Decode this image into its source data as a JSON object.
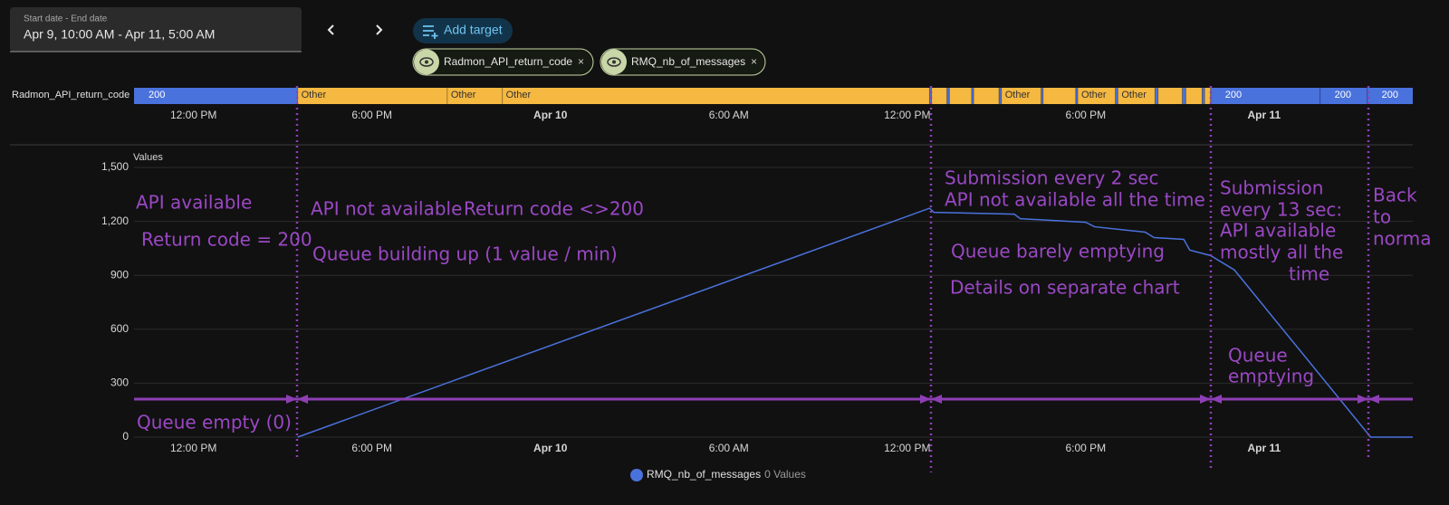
{
  "header": {
    "date_label": "Start date - End date",
    "date_range": "Apr 9, 10:00 AM - Apr 11, 5:00 AM",
    "add_target": "Add target",
    "targets": [
      "Radmon_API_return_code",
      "RMQ_nb_of_messages"
    ]
  },
  "chart_data": [
    {
      "type": "timeline",
      "name": "Radmon_API_return_code",
      "states": [
        {
          "name": "200",
          "color": "#4a72dc"
        },
        {
          "name": "Other",
          "color": "#f5b841"
        }
      ],
      "segments": [
        {
          "state": "200",
          "start": "Apr 9, 10:00 AM",
          "end": "Apr 9, 3:30 PM"
        },
        {
          "state": "Other",
          "start": "Apr 9, 3:30 PM",
          "end": "Apr 9, 8:32 PM"
        },
        {
          "state": "Other",
          "start": "Apr 9, 8:32 PM",
          "end": "Apr 9, 10:23 PM"
        },
        {
          "state": "Other",
          "start": "Apr 9, 10:23 PM",
          "end": "Apr 10, 12:45 PM"
        },
        {
          "state": "200",
          "start": "Apr 10, 12:45 PM",
          "end": "Apr 10, 12:49 PM"
        },
        {
          "state": "Other",
          "start": "Apr 10, 12:49 PM",
          "end": "Apr 10, 1:20 PM"
        },
        {
          "state": "200",
          "start": "Apr 10, 1:20 PM",
          "end": "Apr 10, 1:25 PM"
        },
        {
          "state": "Other",
          "start": "Apr 10, 1:25 PM",
          "end": "Apr 10, 2:10 PM"
        },
        {
          "state": "200",
          "start": "Apr 10, 2:10 PM",
          "end": "Apr 10, 2:14 PM"
        },
        {
          "state": "Other",
          "start": "Apr 10, 2:14 PM",
          "end": "Apr 10, 3:05 PM"
        },
        {
          "state": "200",
          "start": "Apr 10, 3:05 PM",
          "end": "Apr 10, 3:10 PM"
        },
        {
          "state": "Other",
          "start": "Apr 10, 3:10 PM",
          "end": "Apr 10, 4:30 PM"
        },
        {
          "state": "200",
          "start": "Apr 10, 4:30 PM",
          "end": "Apr 10, 4:34 PM"
        },
        {
          "state": "Other",
          "start": "Apr 10, 4:34 PM",
          "end": "Apr 10, 5:40 PM"
        },
        {
          "state": "200",
          "start": "Apr 10, 5:40 PM",
          "end": "Apr 10, 5:44 PM"
        },
        {
          "state": "Other",
          "start": "Apr 10, 5:44 PM",
          "end": "Apr 10, 7:00 PM"
        },
        {
          "state": "200",
          "start": "Apr 10, 7:00 PM",
          "end": "Apr 10, 7:05 PM"
        },
        {
          "state": "Other",
          "start": "Apr 10, 7:05 PM",
          "end": "Apr 10, 8:20 PM"
        },
        {
          "state": "200",
          "start": "Apr 10, 8:20 PM",
          "end": "Apr 10, 8:26 PM"
        },
        {
          "state": "Other",
          "start": "Apr 10, 8:26 PM",
          "end": "Apr 10, 9:15 PM"
        },
        {
          "state": "200",
          "start": "Apr 10, 9:15 PM",
          "end": "Apr 10, 9:22 PM"
        },
        {
          "state": "Other",
          "start": "Apr 10, 9:22 PM",
          "end": "Apr 10, 9:55 PM"
        },
        {
          "state": "200",
          "start": "Apr 10, 9:55 PM",
          "end": "Apr 10, 10:00 PM"
        },
        {
          "state": "Other",
          "start": "Apr 10, 10:00 PM",
          "end": "Apr 10, 10:12 PM"
        },
        {
          "state": "200",
          "start": "Apr 10, 10:12 PM",
          "end": "Apr 11, 1:53 AM"
        },
        {
          "state": "200",
          "start": "Apr 11, 1:53 AM",
          "end": "Apr 11, 3:28 AM"
        },
        {
          "state": "200",
          "start": "Apr 11, 3:28 AM",
          "end": "Apr 11, 5:00 AM"
        }
      ],
      "xlim": [
        "Apr 9, 10:00 AM",
        "Apr 11, 5:00 AM"
      ],
      "xticks": [
        {
          "value": "Apr 9, 12:00 PM",
          "label": "12:00 PM"
        },
        {
          "value": "Apr 9, 6:00 PM",
          "label": "6:00 PM"
        },
        {
          "value": "Apr 10, 12:00 AM",
          "label": "Apr 10"
        },
        {
          "value": "Apr 10, 6:00 AM",
          "label": "6:00 AM"
        },
        {
          "value": "Apr 10, 12:00 PM",
          "label": "12:00 PM"
        },
        {
          "value": "Apr 10, 6:00 PM",
          "label": "6:00 PM"
        },
        {
          "value": "Apr 11, 12:00 AM",
          "label": "Apr 11"
        }
      ]
    },
    {
      "type": "line",
      "ylabel": "Values",
      "x": [
        "Apr 9, 3:30 PM",
        "Apr 10, 12:45 PM",
        "Apr 10, 12:54 PM",
        "Apr 10, 3:36 PM",
        "Apr 10, 3:48 PM",
        "Apr 10, 6:00 PM",
        "Apr 10, 6:18 PM",
        "Apr 10, 8:00 PM",
        "Apr 10, 8:18 PM",
        "Apr 10, 9:18 PM",
        "Apr 10, 9:30 PM",
        "Apr 10, 10:12 PM",
        "Apr 10, 11:00 PM",
        "Apr 11, 3:35 AM",
        "Apr 11, 5:00 AM"
      ],
      "series": [
        {
          "name": "RMQ_nb_of_messages",
          "count_label": "0 Values",
          "color": "#4a72dc",
          "values": [
            0,
            1273,
            1250,
            1240,
            1215,
            1195,
            1170,
            1140,
            1110,
            1100,
            1040,
            1010,
            930,
            0,
            0
          ]
        }
      ],
      "xlim": [
        "Apr 9, 10:00 AM",
        "Apr 11, 5:00 AM"
      ],
      "xticks": [
        {
          "value": "Apr 9, 12:00 PM",
          "label": "12:00 PM"
        },
        {
          "value": "Apr 9, 6:00 PM",
          "label": "6:00 PM"
        },
        {
          "value": "Apr 10, 12:00 AM",
          "label": "Apr 10"
        },
        {
          "value": "Apr 10, 6:00 AM",
          "label": "6:00 AM"
        },
        {
          "value": "Apr 10, 12:00 PM",
          "label": "12:00 PM"
        },
        {
          "value": "Apr 10, 6:00 PM",
          "label": "6:00 PM"
        },
        {
          "value": "Apr 11, 12:00 AM",
          "label": "Apr 11"
        }
      ],
      "ylim": [
        0,
        1500
      ],
      "yticks": [
        0,
        300,
        600,
        900,
        {
          "value": 1200,
          "label": "1,200"
        },
        {
          "value": 1500,
          "label": "1,500"
        }
      ],
      "grid": true
    }
  ],
  "annotations": [
    "API available",
    "Return code = 200",
    "API not available",
    "Return code <>200",
    "Queue building up (1 value / min)",
    "Submission every 2 sec",
    "API not available all the time",
    "Queue barely emptying",
    "Details on separate chart",
    "Submission",
    "every 13 sec:",
    "API available",
    "mostly all the",
    "time",
    "Back",
    "to",
    "norma",
    "Queue",
    "emptying",
    "Queue empty (0)"
  ]
}
